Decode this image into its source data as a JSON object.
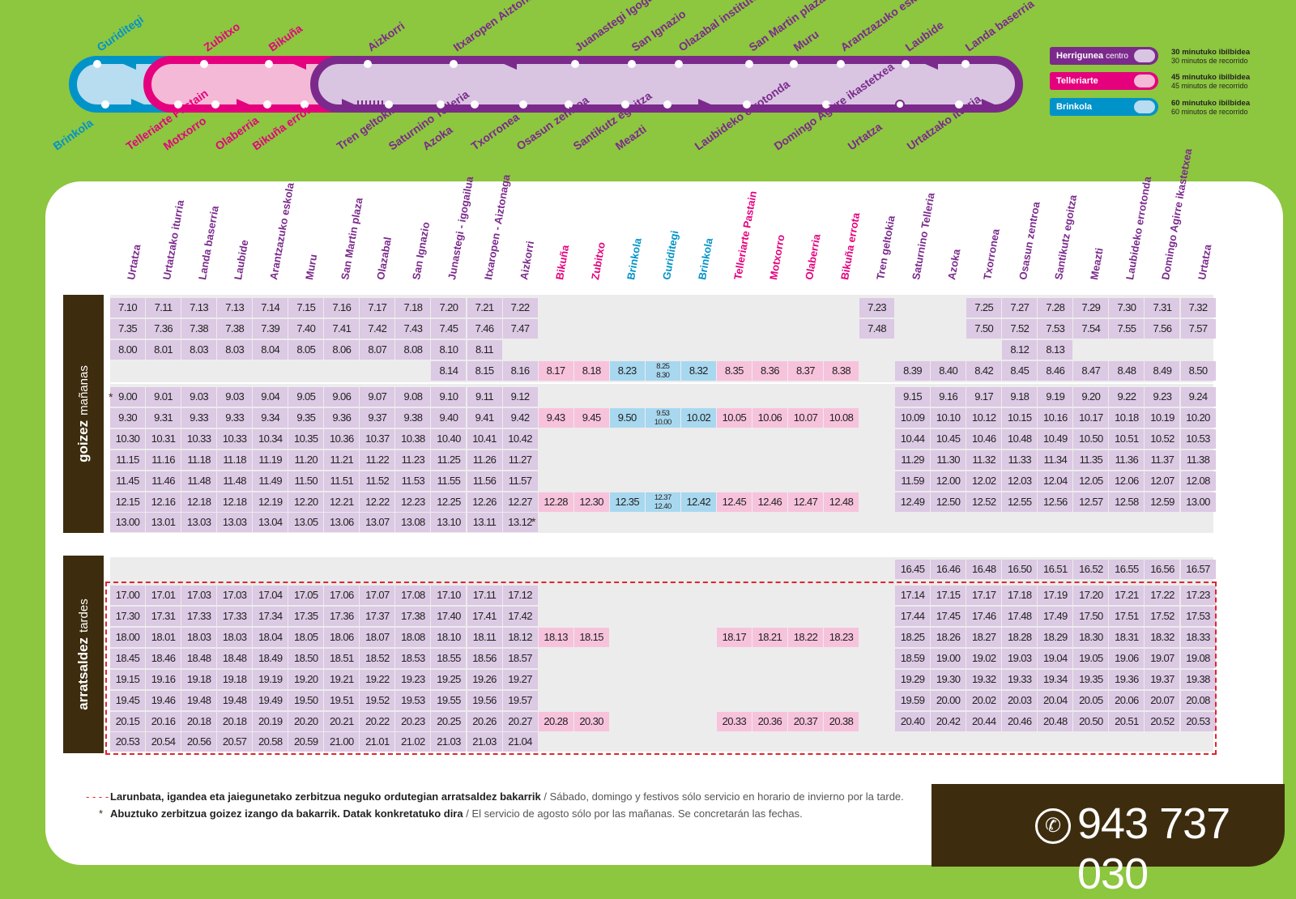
{
  "colors": {
    "bg": "#8dc63f",
    "purple": "#7b2a8c",
    "pink": "#e5007e",
    "blue": "#0093c9",
    "dark": "#3d2d0e",
    "cell_purple": "#dcc9e3",
    "cell_pink": "#f7c3dc",
    "cell_blue": "#a8d8ef",
    "cell_grey": "#ececec"
  },
  "legend": [
    {
      "name": "Herrigunea",
      "suffix": "centro",
      "time_eu": "30 minutuko ibilbidea",
      "time_es": "30 minutos de recorrido"
    },
    {
      "name": "Telleriarte",
      "suffix": "",
      "time_eu": "45 minutuko ibilbidea",
      "time_es": "45 minutos de recorrido"
    },
    {
      "name": "Brinkola",
      "suffix": "",
      "time_eu": "60 minutuko ibilbidea",
      "time_es": "60 minutos de recorrido"
    }
  ],
  "route_map": {
    "top": [
      "Guriditegi",
      "Zubitxo",
      "Bikuña",
      "Aizkorri",
      "Itxaropen Aiztonaga",
      "Juanastegi Igogailua",
      "San Ignazio",
      "Olazabal institutoa",
      "San Martin plaza",
      "Muru",
      "Arantzazuko eskola",
      "Laubide",
      "Landa baserria"
    ],
    "bottom": [
      "Brinkola",
      "Telleriarte Pastain",
      "Motxorro",
      "Olaberria",
      "Bikuña errota",
      "Tren geltokia",
      "Saturnino Telleria",
      "Azoka",
      "Txorronea",
      "Osasun zentroa",
      "Santikutz egoitza",
      "Meazti",
      "Laubideko errotonda",
      "Domingo Agirre ikastetxea",
      "Urtatza",
      "Urtatzako iturria"
    ]
  },
  "headers": [
    "Urtatza",
    "Urtatzako iturria",
    "Landa baserria",
    "Laubide",
    "Arantzazuko eskola",
    "Muru",
    "San Martin plaza",
    "Olazabal",
    "San Ignazio",
    "Junastegi - igogailua",
    "Itxaropen - Aiztonaga",
    "Aizkorri",
    "Bikuña",
    "Zubitxo",
    "Brinkola",
    "Guriditegi",
    "Brinkola",
    "Telleriarte Pastain",
    "Motxorro",
    "Olaberria",
    "Bikuña errota",
    "Tren geltokia",
    "Saturnino Telleria",
    "Azoka",
    "Txorronea",
    "Osasun zentroa",
    "Santikutz egoitza",
    "Meazti",
    "Laubideko errotonda",
    "Domingo Agirre ikastetxea",
    "Urtatza"
  ],
  "sections": {
    "morning": {
      "eu": "goizez",
      "es": "mañanas"
    },
    "afternoon": {
      "eu": "arratsaldez",
      "es": "tardes"
    }
  },
  "morning_rows": [
    [
      "7.10",
      "7.11",
      "7.13",
      "7.13",
      "7.14",
      "7.15",
      "7.16",
      "7.17",
      "7.18",
      "7.20",
      "7.21",
      "7.22",
      "",
      "",
      "",
      "",
      "",
      "",
      "",
      "",
      "",
      "7.23",
      "",
      "",
      "7.25",
      "7.27",
      "7.28",
      "7.29",
      "7.30",
      "7.31",
      "7.32"
    ],
    [
      "7.35",
      "7.36",
      "7.38",
      "7.38",
      "7.39",
      "7.40",
      "7.41",
      "7.42",
      "7.43",
      "7.45",
      "7.46",
      "7.47",
      "",
      "",
      "",
      "",
      "",
      "",
      "",
      "",
      "",
      "7.48",
      "",
      "",
      "7.50",
      "7.52",
      "7.53",
      "7.54",
      "7.55",
      "7.56",
      "7.57"
    ],
    [
      "8.00",
      "8.01",
      "8.03",
      "8.03",
      "8.04",
      "8.05",
      "8.06",
      "8.07",
      "8.08",
      "8.10",
      "8.11",
      "",
      "",
      "",
      "",
      "",
      "",
      "",
      "",
      "",
      "",
      "",
      "",
      "",
      "",
      "8.12",
      "8.13",
      "",
      "",
      "",
      ""
    ],
    [
      "",
      "",
      "",
      "",
      "",
      "",
      "",
      "",
      "",
      "8.14",
      "8.15",
      "8.16",
      "8.17",
      "8.18",
      "8.23",
      "8.25|8.30",
      "8.32",
      "8.35",
      "8.36",
      "8.37",
      "8.38",
      "",
      "8.39",
      "8.40",
      "8.42",
      "8.45",
      "8.46",
      "8.47",
      "8.48",
      "8.49",
      "8.50"
    ],
    [
      "9.00",
      "9.01",
      "9.03",
      "9.03",
      "9.04",
      "9.05",
      "9.06",
      "9.07",
      "9.08",
      "9.10",
      "9.11",
      "9.12",
      "",
      "",
      "",
      "",
      "",
      "",
      "",
      "",
      "",
      "",
      "9.15",
      "9.16",
      "9.17",
      "9.18",
      "9.19",
      "9.20",
      "9.22",
      "9.23",
      "9.24"
    ],
    [
      "9.30",
      "9.31",
      "9.33",
      "9.33",
      "9.34",
      "9.35",
      "9.36",
      "9.37",
      "9.38",
      "9.40",
      "9.41",
      "9.42",
      "9.43",
      "9.45",
      "9.50",
      "9.53|10.00",
      "10.02",
      "10.05",
      "10.06",
      "10.07",
      "10.08",
      "",
      "10.09",
      "10.10",
      "10.12",
      "10.15",
      "10.16",
      "10.17",
      "10.18",
      "10.19",
      "10.20"
    ],
    [
      "10.30",
      "10.31",
      "10.33",
      "10.33",
      "10.34",
      "10.35",
      "10.36",
      "10.37",
      "10.38",
      "10.40",
      "10.41",
      "10.42",
      "",
      "",
      "",
      "",
      "",
      "",
      "",
      "",
      "",
      "",
      "10.44",
      "10.45",
      "10.46",
      "10.48",
      "10.49",
      "10.50",
      "10.51",
      "10.52",
      "10.53"
    ],
    [
      "11.15",
      "11.16",
      "11.18",
      "11.18",
      "11.19",
      "11.20",
      "11.21",
      "11.22",
      "11.23",
      "11.25",
      "11.26",
      "11.27",
      "",
      "",
      "",
      "",
      "",
      "",
      "",
      "",
      "",
      "",
      "11.29",
      "11.30",
      "11.32",
      "11.33",
      "11.34",
      "11.35",
      "11.36",
      "11.37",
      "11.38"
    ],
    [
      "11.45",
      "11.46",
      "11.48",
      "11.48",
      "11.49",
      "11.50",
      "11.51",
      "11.52",
      "11.53",
      "11.55",
      "11.56",
      "11.57",
      "",
      "",
      "",
      "",
      "",
      "",
      "",
      "",
      "",
      "",
      "11.59",
      "12.00",
      "12.02",
      "12.03",
      "12.04",
      "12.05",
      "12.06",
      "12.07",
      "12.08"
    ],
    [
      "12.15",
      "12.16",
      "12.18",
      "12.18",
      "12.19",
      "12.20",
      "12.21",
      "12.22",
      "12.23",
      "12.25",
      "12.26",
      "12.27",
      "12.28",
      "12.30",
      "12.35",
      "12.37|12.40",
      "12.42",
      "12.45",
      "12.46",
      "12.47",
      "12.48",
      "",
      "12.49",
      "12.50",
      "12.52",
      "12.55",
      "12.56",
      "12.57",
      "12.58",
      "12.59",
      "13.00"
    ],
    [
      "13.00",
      "13.01",
      "13.03",
      "13.03",
      "13.04",
      "13.05",
      "13.06",
      "13.07",
      "13.08",
      "13.10",
      "13.11",
      "13.12",
      "",
      "",
      "",
      "",
      "",
      "",
      "",
      "",
      "",
      "",
      "",
      "",
      "",
      "",
      "",
      "",
      "",
      "",
      ""
    ]
  ],
  "afternoon_rows": [
    [
      "",
      "",
      "",
      "",
      "",
      "",
      "",
      "",
      "",
      "",
      "",
      "",
      "",
      "",
      "",
      "",
      "",
      "",
      "",
      "",
      "",
      "",
      "16.45",
      "16.46",
      "16.48",
      "16.50",
      "16.51",
      "16.52",
      "16.55",
      "16.56",
      "16.57"
    ],
    [
      "17.00",
      "17.01",
      "17.03",
      "17.03",
      "17.04",
      "17.05",
      "17.06",
      "17.07",
      "17.08",
      "17.10",
      "17.11",
      "17.12",
      "",
      "",
      "",
      "",
      "",
      "",
      "",
      "",
      "",
      "",
      "17.14",
      "17.15",
      "17.17",
      "17.18",
      "17.19",
      "17.20",
      "17.21",
      "17.22",
      "17.23"
    ],
    [
      "17.30",
      "17.31",
      "17.33",
      "17.33",
      "17.34",
      "17.35",
      "17.36",
      "17.37",
      "17.38",
      "17.40",
      "17.41",
      "17.42",
      "",
      "",
      "",
      "",
      "",
      "",
      "",
      "",
      "",
      "",
      "17.44",
      "17.45",
      "17.46",
      "17.48",
      "17.49",
      "17.50",
      "17.51",
      "17.52",
      "17.53"
    ],
    [
      "18.00",
      "18.01",
      "18.03",
      "18.03",
      "18.04",
      "18.05",
      "18.06",
      "18.07",
      "18.08",
      "18.10",
      "18.11",
      "18.12",
      "18.13",
      "18.15",
      "",
      "",
      "",
      "18.17",
      "18.21",
      "18.22",
      "18.23",
      "",
      "18.25",
      "18.26",
      "18.27",
      "18.28",
      "18.29",
      "18.30",
      "18.31",
      "18.32",
      "18.33"
    ],
    [
      "18.45",
      "18.46",
      "18.48",
      "18.48",
      "18.49",
      "18.50",
      "18.51",
      "18.52",
      "18.53",
      "18.55",
      "18.56",
      "18.57",
      "",
      "",
      "",
      "",
      "",
      "",
      "",
      "",
      "",
      "",
      "18.59",
      "19.00",
      "19.02",
      "19.03",
      "19.04",
      "19.05",
      "19.06",
      "19.07",
      "19.08"
    ],
    [
      "19.15",
      "19.16",
      "19.18",
      "19.18",
      "19.19",
      "19.20",
      "19.21",
      "19.22",
      "19.23",
      "19.25",
      "19.26",
      "19.27",
      "",
      "",
      "",
      "",
      "",
      "",
      "",
      "",
      "",
      "",
      "19.29",
      "19.30",
      "19.32",
      "19.33",
      "19.34",
      "19.35",
      "19.36",
      "19.37",
      "19.38"
    ],
    [
      "19.45",
      "19.46",
      "19.48",
      "19.48",
      "19.49",
      "19.50",
      "19.51",
      "19.52",
      "19.53",
      "19.55",
      "19.56",
      "19.57",
      "",
      "",
      "",
      "",
      "",
      "",
      "",
      "",
      "",
      "",
      "19.59",
      "20.00",
      "20.02",
      "20.03",
      "20.04",
      "20.05",
      "20.06",
      "20.07",
      "20.08"
    ],
    [
      "20.15",
      "20.16",
      "20.18",
      "20.18",
      "20.19",
      "20.20",
      "20.21",
      "20.22",
      "20.23",
      "20.25",
      "20.26",
      "20.27",
      "20.28",
      "20.30",
      "",
      "",
      "",
      "20.33",
      "20.36",
      "20.37",
      "20.38",
      "",
      "20.40",
      "20.42",
      "20.44",
      "20.46",
      "20.48",
      "20.50",
      "20.51",
      "20.52",
      "20.53"
    ],
    [
      "20.53",
      "20.54",
      "20.56",
      "20.57",
      "20.58",
      "20.59",
      "21.00",
      "21.01",
      "21.02",
      "21.03",
      "21.03",
      "21.04",
      "",
      "",
      "",
      "",
      "",
      "",
      "",
      "",
      "",
      "",
      "",
      "",
      "",
      "",
      "",
      "",
      "",
      "",
      ""
    ]
  ],
  "notes": {
    "weekend_eu": "Larunbata, igandea eta jaiegunetako zerbitzua neguko ordutegian arratsaldez bakarrik",
    "weekend_es": "Sábado, domingo y festivos  sólo servicio en horario de invierno por la tarde.",
    "august_eu": "Abuztuko zerbitzua goizez izango da bakarrik. Datak konkretatuko dira",
    "august_es": "El servicio de agosto sólo por las mañanas. Se concretarán las fechas."
  },
  "phone": "943 737 030",
  "marks": {
    "star": "*",
    "sep": "/"
  }
}
